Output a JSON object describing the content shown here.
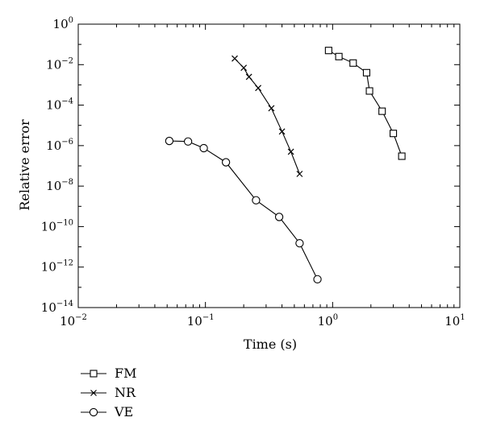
{
  "chart_data": {
    "type": "line",
    "xlabel": "Time (s)",
    "ylabel": "Relative error",
    "xscale": "log",
    "yscale": "log",
    "xlim": [
      0.01,
      10
    ],
    "ylim": [
      1e-14,
      1
    ],
    "x_ticks": [
      {
        "base": "10",
        "exp": "−2"
      },
      {
        "base": "10",
        "exp": "−1"
      },
      {
        "base": "10",
        "exp": "0"
      },
      {
        "base": "10",
        "exp": "1"
      }
    ],
    "y_ticks": [
      {
        "base": "10",
        "exp": "0"
      },
      {
        "base": "10",
        "exp": "−2"
      },
      {
        "base": "10",
        "exp": "−4"
      },
      {
        "base": "10",
        "exp": "−6"
      },
      {
        "base": "10",
        "exp": "−8"
      },
      {
        "base": "10",
        "exp": "−10"
      },
      {
        "base": "10",
        "exp": "−12"
      },
      {
        "base": "10",
        "exp": "−14"
      }
    ],
    "grid": false,
    "legend_position": "below-left",
    "series": [
      {
        "name": "FM",
        "marker": "square",
        "color": "#000000",
        "x": [
          0.93,
          1.12,
          1.45,
          1.85,
          1.95,
          2.45,
          3.0,
          3.5
        ],
        "y": [
          0.05,
          0.025,
          0.012,
          0.004,
          0.0005,
          5e-05,
          4e-06,
          3e-07
        ]
      },
      {
        "name": "NR",
        "marker": "x",
        "color": "#000000",
        "x": [
          0.17,
          0.2,
          0.22,
          0.26,
          0.33,
          0.4,
          0.47,
          0.55
        ],
        "y": [
          0.02,
          0.007,
          0.0025,
          0.0007,
          7e-05,
          5e-06,
          5e-07,
          4e-08
        ]
      },
      {
        "name": "VE",
        "marker": "circle",
        "color": "#000000",
        "x": [
          0.052,
          0.073,
          0.097,
          0.145,
          0.25,
          0.38,
          0.55,
          0.76
        ],
        "y": [
          1.7e-06,
          1.6e-06,
          7.5e-07,
          1.5e-07,
          2e-09,
          3e-10,
          1.5e-11,
          2.5e-13
        ]
      }
    ]
  }
}
